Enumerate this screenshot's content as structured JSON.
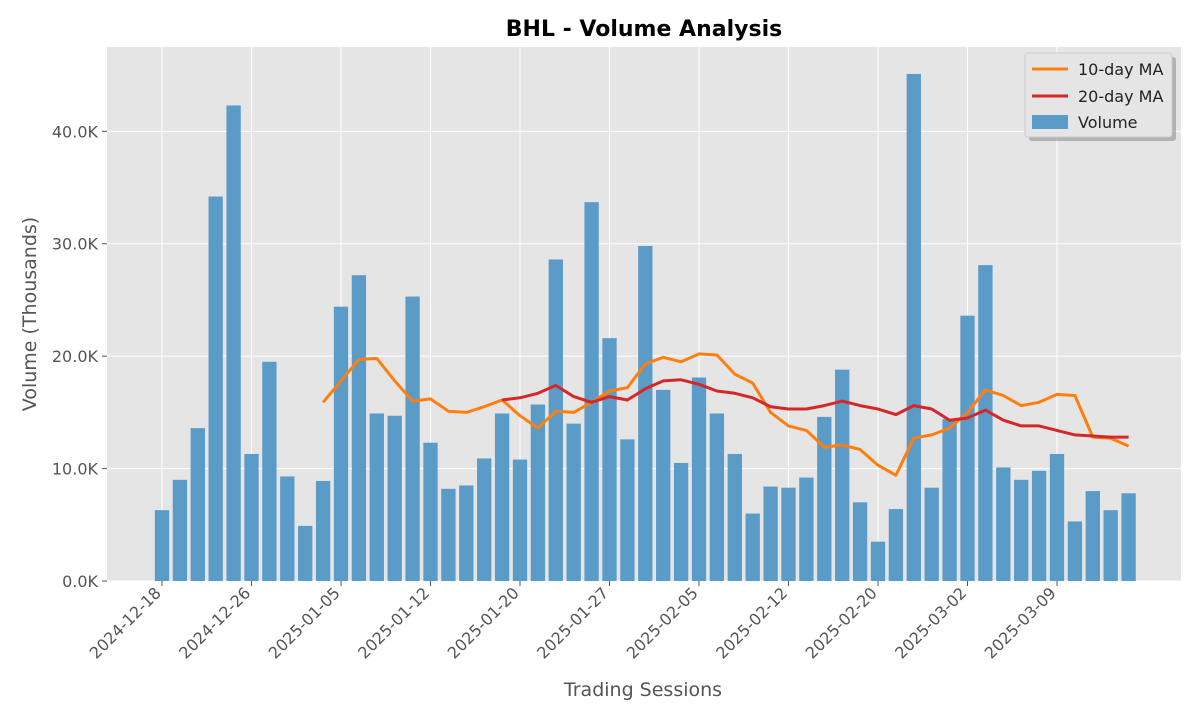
{
  "chart_data": {
    "type": "bar",
    "title": "BHL - Volume Analysis",
    "xlabel": "Trading Sessions",
    "ylabel": "Volume (Thousands)",
    "ylim": [
      0,
      47500
    ],
    "ytick_values": [
      0,
      10000,
      20000,
      30000,
      40000
    ],
    "ytick_labels": [
      "0.0K",
      "10.0K",
      "20.0K",
      "30.0K",
      "40.0K"
    ],
    "xtick_positions": [
      0,
      5,
      10,
      15,
      20,
      25,
      30,
      35,
      40,
      45,
      50
    ],
    "xtick_labels": [
      "2024-12-18",
      "2024-12-26",
      "2025-01-05",
      "2025-01-12",
      "2025-01-20",
      "2025-01-27",
      "2025-02-05",
      "2025-02-12",
      "2025-02-20",
      "2025-03-02",
      "2025-03-09"
    ],
    "grid": true,
    "legend_position": "top-right",
    "colors": {
      "volume": "#5b9bc8",
      "ma10": "#ff7f0e",
      "ma20": "#d62728",
      "plot_bg": "#e5e5e5"
    },
    "series": [
      {
        "name": "Volume",
        "kind": "bar",
        "values": [
          6300,
          9000,
          13600,
          34200,
          42300,
          11300,
          19500,
          9300,
          4900,
          8900,
          24400,
          27200,
          14900,
          14700,
          25300,
          12300,
          8200,
          8500,
          10900,
          14900,
          10800,
          15700,
          28600,
          14000,
          33700,
          21600,
          12600,
          29800,
          17000,
          10500,
          18100,
          14900,
          11300,
          6000,
          8400,
          8300,
          9200,
          14600,
          18800,
          7000,
          3500,
          6400,
          45100,
          8300,
          14400,
          23600,
          28100,
          10100,
          9000,
          9800,
          11300,
          5300,
          8000,
          6300,
          7800
        ]
      },
      {
        "name": "10-day MA",
        "kind": "line",
        "values": [
          null,
          null,
          null,
          null,
          null,
          null,
          null,
          null,
          null,
          15900,
          17800,
          19700,
          19800,
          17800,
          16000,
          16200,
          15100,
          15000,
          15500,
          16100,
          14700,
          13600,
          15100,
          15000,
          15900,
          16900,
          17200,
          19300,
          19900,
          19500,
          20200,
          20100,
          18400,
          17600,
          15000,
          13800,
          13400,
          11900,
          12100,
          11700,
          10300,
          9400,
          12700,
          13000,
          13600,
          15000,
          17000,
          16500,
          15600,
          15900,
          16600,
          16500,
          12800,
          12700,
          12000
        ]
      },
      {
        "name": "20-day MA",
        "kind": "line",
        "values": [
          null,
          null,
          null,
          null,
          null,
          null,
          null,
          null,
          null,
          null,
          null,
          null,
          null,
          null,
          null,
          null,
          null,
          null,
          null,
          16100,
          16300,
          16700,
          17400,
          16400,
          15900,
          16400,
          16100,
          17100,
          17800,
          17900,
          17500,
          16900,
          16700,
          16300,
          15500,
          15300,
          15300,
          15600,
          16000,
          15600,
          15300,
          14800,
          15600,
          15300,
          14300,
          14500,
          15200,
          14300,
          13800,
          13800,
          13400,
          13000,
          12900,
          12800,
          12800
        ]
      }
    ]
  }
}
